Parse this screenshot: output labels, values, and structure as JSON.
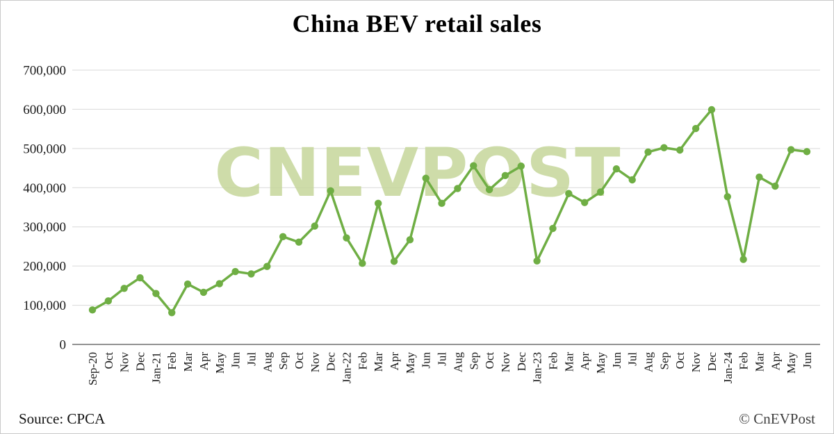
{
  "title": "China BEV retail sales",
  "watermark": "CNEVPOST",
  "footer": {
    "source": "Source: CPCA",
    "copyright": "© CnEVPost"
  },
  "colors": {
    "line": "#6fae44",
    "watermark": "#c6d79b",
    "grid": "#d9d9d9",
    "axis": "#6e6e6e"
  },
  "chart_data": {
    "type": "line",
    "title": "China BEV retail sales",
    "xlabel": "",
    "ylabel": "",
    "ylim": [
      0,
      700000
    ],
    "ytick_step": 100000,
    "grid": true,
    "legend": "none",
    "marker": "circle",
    "x": [
      "Sep-20",
      "Oct",
      "Nov",
      "Dec",
      "Jan-21",
      "Feb",
      "Mar",
      "Apr",
      "May",
      "Jun",
      "Jul",
      "Aug",
      "Sep",
      "Oct",
      "Nov",
      "Dec",
      "Jan-22",
      "Feb",
      "Mar",
      "Apr",
      "May",
      "Jun",
      "Jul",
      "Aug",
      "Sep",
      "Oct",
      "Nov",
      "Dec",
      "Jan-23",
      "Feb",
      "Mar",
      "Apr",
      "May",
      "Jun",
      "Jul",
      "Aug",
      "Sep",
      "Oct",
      "Nov",
      "Dec",
      "Jan-24",
      "Feb",
      "Mar",
      "Apr",
      "May",
      "Jun"
    ],
    "values": [
      88000,
      111000,
      143000,
      170000,
      130000,
      81000,
      154000,
      133000,
      155000,
      186000,
      180000,
      199000,
      275000,
      261000,
      302000,
      392000,
      272000,
      207000,
      360000,
      212000,
      267000,
      424000,
      360000,
      398000,
      456000,
      395000,
      431000,
      455000,
      213000,
      296000,
      385000,
      362000,
      389000,
      448000,
      420000,
      491000,
      502000,
      496000,
      551000,
      599000,
      377000,
      217000,
      427000,
      404000,
      497000,
      492000
    ]
  }
}
